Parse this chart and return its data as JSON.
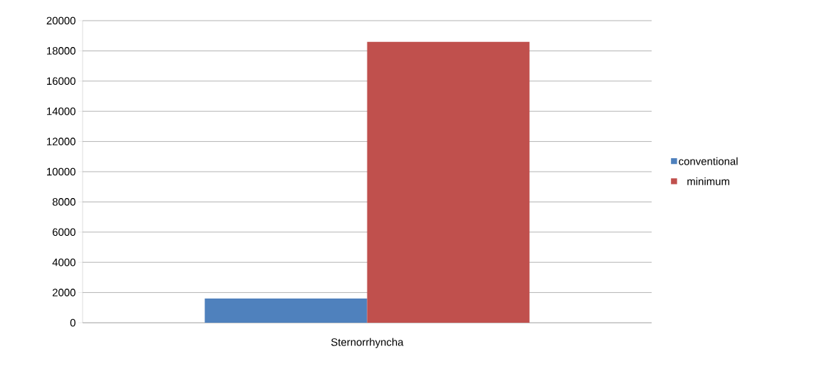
{
  "chart_data": {
    "type": "bar",
    "categories": [
      "Sternorrhyncha"
    ],
    "series": [
      {
        "name": "conventional",
        "color": "#4f81bd",
        "values": [
          1600
        ]
      },
      {
        "name": "minimum",
        "color": "#c0504d",
        "values": [
          18600
        ]
      }
    ],
    "ylim": [
      0,
      20000
    ],
    "yticks": [
      0,
      2000,
      4000,
      6000,
      8000,
      10000,
      12000,
      14000,
      16000,
      18000,
      20000
    ],
    "grid": "y",
    "legend": "right"
  }
}
